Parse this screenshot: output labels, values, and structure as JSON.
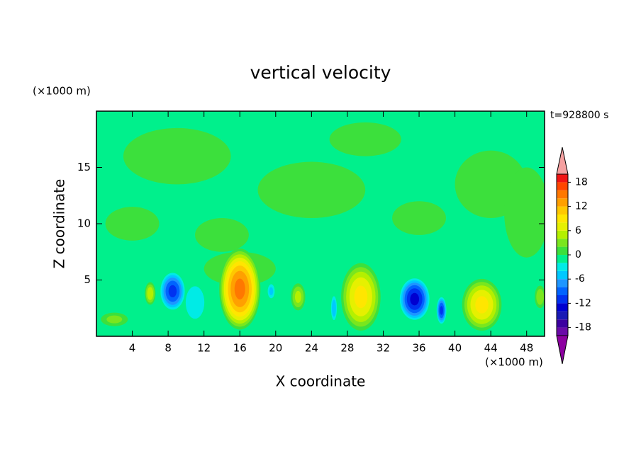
{
  "chart_data": {
    "type": "contour",
    "title": "vertical velocity",
    "x_label": "X coordinate",
    "y_label": "Z coordinate",
    "x_unit": "(×1000 m)",
    "y_unit": "(×1000 m)",
    "time_label": "t=928800 s",
    "xlim": [
      0,
      50
    ],
    "ylim": [
      0,
      20
    ],
    "xticks": [
      4,
      8,
      12,
      16,
      20,
      24,
      28,
      32,
      36,
      40,
      44,
      48
    ],
    "yticks": [
      5,
      10,
      15
    ],
    "levels": [
      -20,
      -18,
      -16,
      -14,
      -12,
      -10,
      -8,
      -6,
      -4,
      -2,
      0,
      2,
      4,
      6,
      8,
      10,
      12,
      14,
      16,
      18,
      20
    ],
    "level_colors": [
      "#6a0aa8",
      "#3c00a0",
      "#1a1ab4",
      "#0000d0",
      "#0032f0",
      "#0064ff",
      "#1e96ff",
      "#00c8ff",
      "#00ebe6",
      "#00f08c",
      "#3ce03c",
      "#7ae61e",
      "#b4f000",
      "#e6f000",
      "#ffe600",
      "#ffc800",
      "#ffa000",
      "#ff7800",
      "#ff4600",
      "#f01414"
    ],
    "under_color": "#8c00a0",
    "over_color": "#f5a0a0",
    "colorbar_ticks": [
      -18,
      -12,
      -6,
      0,
      6,
      12,
      18
    ],
    "field_background": -1,
    "blobs": [
      {
        "x": 9,
        "z": 16,
        "rx": 6,
        "rz": 2.5,
        "peak": 1
      },
      {
        "x": 24,
        "z": 13,
        "rx": 6,
        "rz": 2.5,
        "peak": 1
      },
      {
        "x": 30,
        "z": 17.5,
        "rx": 4,
        "rz": 1.5,
        "peak": 1
      },
      {
        "x": 44,
        "z": 13.5,
        "rx": 4,
        "rz": 3,
        "peak": 1
      },
      {
        "x": 4,
        "z": 10,
        "rx": 3,
        "rz": 1.5,
        "peak": 1
      },
      {
        "x": 48,
        "z": 11,
        "rx": 2.5,
        "rz": 4,
        "peak": 1
      },
      {
        "x": 36,
        "z": 10.5,
        "rx": 3,
        "rz": 1.5,
        "peak": 1
      },
      {
        "x": 14,
        "z": 9,
        "rx": 3,
        "rz": 1.5,
        "peak": 1
      },
      {
        "x": 16,
        "z": 6,
        "rx": 4,
        "rz": 1.5,
        "peak": 1
      },
      {
        "x": 11,
        "z": 3,
        "rx": 1.8,
        "rz": 2.5,
        "peak": -3
      },
      {
        "x": 2,
        "z": 1.5,
        "rx": 1.5,
        "rz": 0.6,
        "peak": 3
      },
      {
        "x": 16,
        "z": 4.2,
        "rx": 2.3,
        "rz": 3.6,
        "peak": 15
      },
      {
        "x": 29.5,
        "z": 3.5,
        "rx": 2.2,
        "rz": 3,
        "peak": 9
      },
      {
        "x": 43,
        "z": 2.8,
        "rx": 2.2,
        "rz": 2.3,
        "peak": 9
      },
      {
        "x": 8.5,
        "z": 4,
        "rx": 1.5,
        "rz": 1.8,
        "peak": -11
      },
      {
        "x": 35.5,
        "z": 3.3,
        "rx": 1.8,
        "rz": 2,
        "peak": -13
      },
      {
        "x": 38.5,
        "z": 2.3,
        "rx": 0.6,
        "rz": 1.3,
        "peak": -11
      },
      {
        "x": 6,
        "z": 3.8,
        "rx": 0.6,
        "rz": 1,
        "peak": 6
      },
      {
        "x": 22.5,
        "z": 3.5,
        "rx": 0.8,
        "rz": 1.2,
        "peak": 5
      },
      {
        "x": 19.5,
        "z": 4,
        "rx": 0.5,
        "rz": 0.8,
        "peak": -5
      },
      {
        "x": 49.5,
        "z": 3.5,
        "rx": 0.6,
        "rz": 1,
        "peak": 4
      },
      {
        "x": 26.5,
        "z": 2.5,
        "rx": 0.4,
        "rz": 1.3,
        "peak": -6
      }
    ]
  }
}
